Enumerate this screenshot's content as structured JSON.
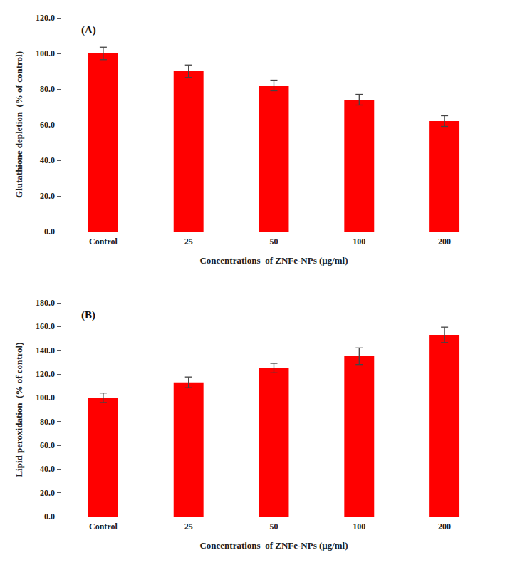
{
  "chart_data": [
    {
      "type": "bar",
      "title": "(A)",
      "categories": [
        "Control",
        "25",
        "50",
        "100",
        "200"
      ],
      "values": [
        100.0,
        90.0,
        82.0,
        74.0,
        62.0
      ],
      "errors": [
        3.5,
        3.5,
        3.0,
        3.0,
        3.0
      ],
      "xlabel": "Concentrations  of ZNFe-NPs (μg/ml)",
      "ylabel": "Glutathione depletion  (% of control)",
      "ylim": [
        0,
        120.0
      ],
      "yticks": [
        {
          "value": 0.0,
          "label": "0.0"
        },
        {
          "value": 20.0,
          "label": "20.0"
        },
        {
          "value": 40.0,
          "label": "40.0"
        },
        {
          "value": 60.0,
          "label": "60.0"
        },
        {
          "value": 80.0,
          "label": "80.0"
        },
        {
          "value": 100.0,
          "label": "100.0"
        },
        {
          "value": 120.0,
          "label": "120.0"
        }
      ],
      "color": "#ff0000",
      "grid": false
    },
    {
      "type": "bar",
      "title": "(B)",
      "categories": [
        "Control",
        "25",
        "50",
        "100",
        "200"
      ],
      "values": [
        100.0,
        113.0,
        125.0,
        135.0,
        153.0
      ],
      "errors": [
        4.0,
        4.5,
        4.0,
        7.0,
        6.5
      ],
      "xlabel": "Concentrations  of ZNFe-NPs (μg/ml)",
      "ylabel": "Lipid peroxidation  (% of control)",
      "ylim": [
        0,
        180.0
      ],
      "yticks": [
        {
          "value": 0.0,
          "label": "0.0"
        },
        {
          "value": 20.0,
          "label": "20.0"
        },
        {
          "value": 40.0,
          "label": "40.0"
        },
        {
          "value": 60.0,
          "label": "60.0"
        },
        {
          "value": 80.0,
          "label": "80.0"
        },
        {
          "value": 100.0,
          "label": "100.0"
        },
        {
          "value": 120.0,
          "label": "120.0"
        },
        {
          "value": 140.0,
          "label": "140.0"
        },
        {
          "value": 160.0,
          "label": "160.0"
        },
        {
          "value": 180.0,
          "label": "180.0"
        }
      ],
      "color": "#ff0000",
      "grid": false
    }
  ]
}
